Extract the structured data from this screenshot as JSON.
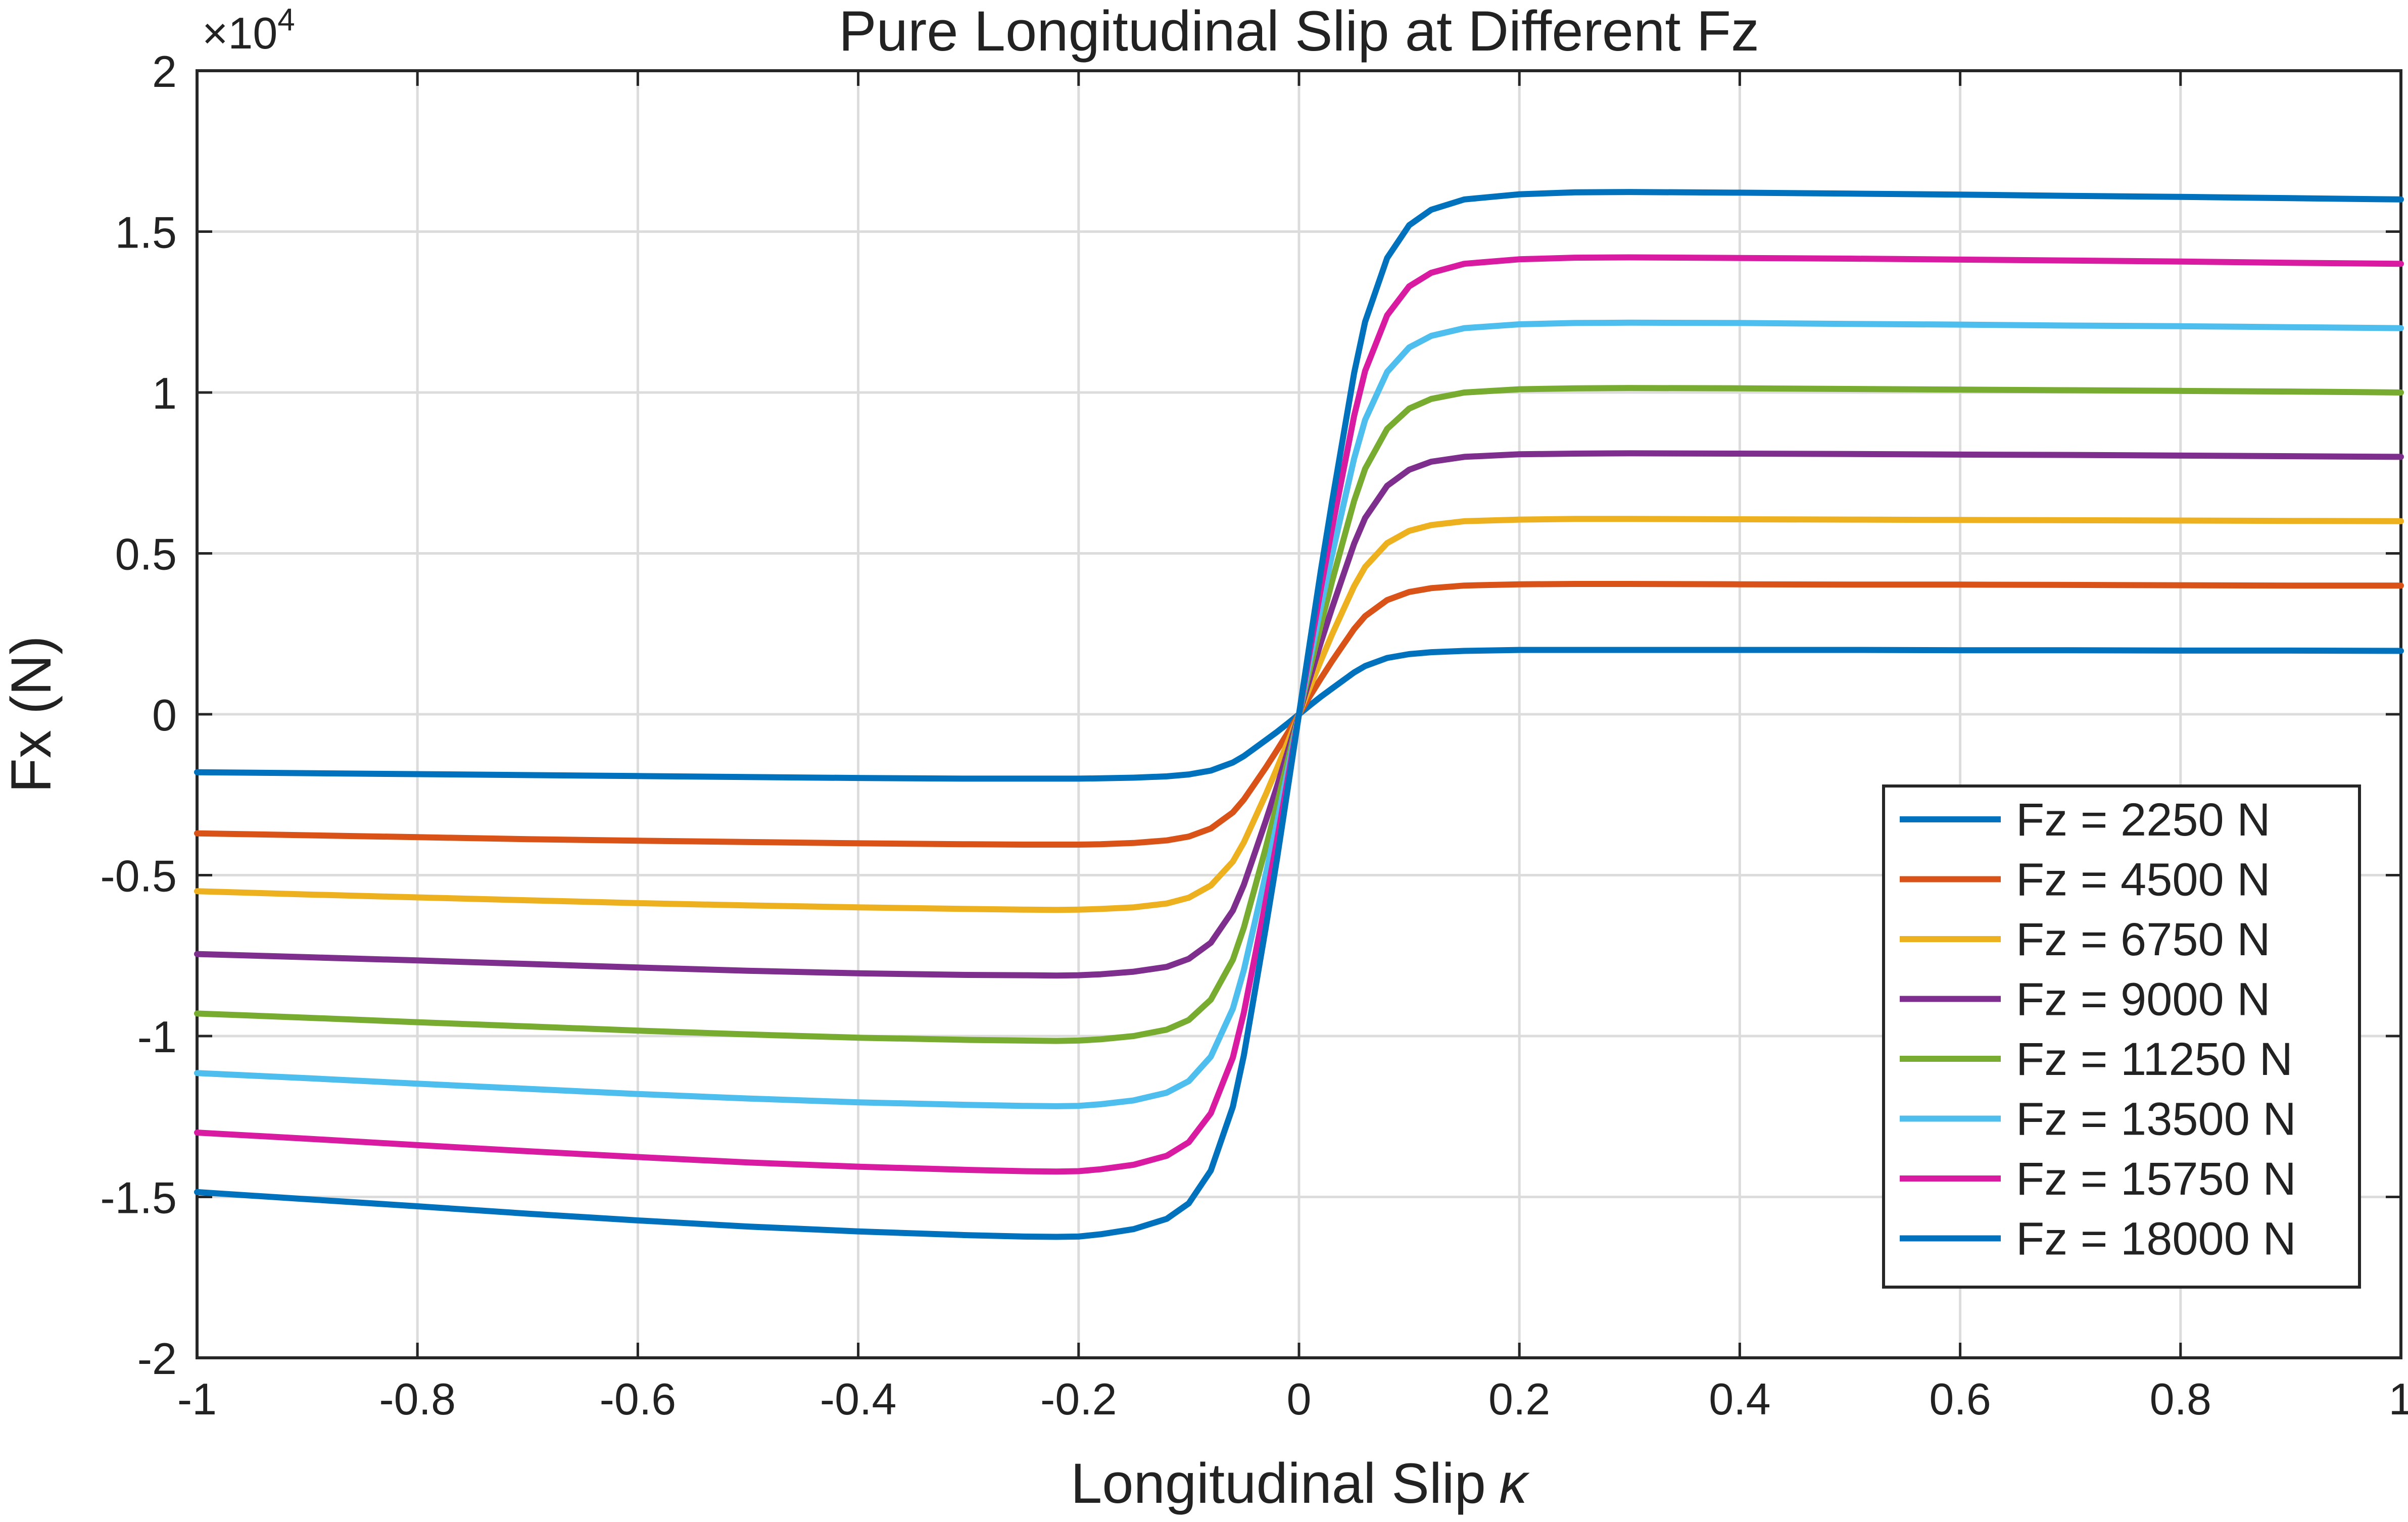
{
  "chart_data": {
    "type": "line",
    "title": "Pure Longitudinal Slip at Different Fz",
    "xlabel": "Longitudinal  Slip",
    "xlabel_symbol": "κ",
    "ylabel": "Fx (N)",
    "y_exponent_label": "×10",
    "y_exponent_power": "4",
    "xlim": [
      -1,
      1
    ],
    "ylim": [
      -2,
      2
    ],
    "x_ticks": [
      -1,
      -0.8,
      -0.6,
      -0.4,
      -0.2,
      0,
      0.2,
      0.4,
      0.6,
      0.8,
      1
    ],
    "x_tick_labels": [
      "-1",
      "-0.8",
      "-0.6",
      "-0.4",
      "-0.2",
      "0",
      "0.2",
      "0.4",
      "0.6",
      "0.8",
      "1"
    ],
    "y_ticks": [
      -2,
      -1.5,
      -1,
      -0.5,
      0,
      0.5,
      1,
      1.5,
      2
    ],
    "y_tick_labels": [
      "-2",
      "-1.5",
      "-1",
      "-0.5",
      "0",
      "0.5",
      "1",
      "1.5",
      "2"
    ],
    "grid": true,
    "legend_position": "bottom-right",
    "x": [
      -1,
      -0.9,
      -0.8,
      -0.7,
      -0.6,
      -0.5,
      -0.4,
      -0.3,
      -0.25,
      -0.22,
      -0.2,
      -0.18,
      -0.15,
      -0.12,
      -0.1,
      -0.08,
      -0.06,
      -0.05,
      -0.04,
      -0.03,
      -0.02,
      -0.01,
      0,
      0.01,
      0.02,
      0.03,
      0.04,
      0.05,
      0.06,
      0.08,
      0.1,
      0.12,
      0.15,
      0.2,
      0.25,
      0.3,
      0.4,
      0.5,
      0.6,
      0.7,
      0.8,
      0.9,
      1
    ],
    "series": [
      {
        "name": "Fz = 2250 N",
        "color": "#0072BD",
        "values": [
          -0.18,
          -0.183,
          -0.186,
          -0.189,
          -0.192,
          -0.195,
          -0.198,
          -0.2,
          -0.2,
          -0.2,
          -0.2,
          -0.199,
          -0.197,
          -0.193,
          -0.187,
          -0.175,
          -0.15,
          -0.13,
          -0.105,
          -0.08,
          -0.055,
          -0.028,
          0,
          0.028,
          0.055,
          0.08,
          0.105,
          0.13,
          0.15,
          0.175,
          0.187,
          0.193,
          0.197,
          0.2,
          0.2,
          0.2,
          0.2,
          0.2,
          0.199,
          0.199,
          0.198,
          0.198,
          0.197
        ]
      },
      {
        "name": "Fz = 4500 N",
        "color": "#D95319",
        "values": [
          -0.37,
          -0.376,
          -0.382,
          -0.388,
          -0.393,
          -0.397,
          -0.401,
          -0.404,
          -0.405,
          -0.405,
          -0.405,
          -0.404,
          -0.4,
          -0.392,
          -0.38,
          -0.355,
          -0.305,
          -0.265,
          -0.215,
          -0.165,
          -0.112,
          -0.057,
          0,
          0.057,
          0.112,
          0.165,
          0.215,
          0.265,
          0.305,
          0.355,
          0.38,
          0.392,
          0.4,
          0.404,
          0.405,
          0.405,
          0.404,
          0.403,
          0.403,
          0.402,
          0.401,
          0.4,
          0.4
        ]
      },
      {
        "name": "Fz = 6750 N",
        "color": "#EDB120",
        "values": [
          -0.55,
          -0.56,
          -0.569,
          -0.578,
          -0.587,
          -0.594,
          -0.6,
          -0.605,
          -0.607,
          -0.608,
          -0.607,
          -0.605,
          -0.6,
          -0.588,
          -0.57,
          -0.532,
          -0.458,
          -0.398,
          -0.323,
          -0.248,
          -0.168,
          -0.085,
          0,
          0.085,
          0.168,
          0.248,
          0.323,
          0.398,
          0.458,
          0.532,
          0.57,
          0.588,
          0.6,
          0.605,
          0.607,
          0.607,
          0.606,
          0.605,
          0.604,
          0.603,
          0.602,
          0.601,
          0.6
        ]
      },
      {
        "name": "Fz = 9000 N",
        "color": "#7E2F8E",
        "values": [
          -0.745,
          -0.755,
          -0.765,
          -0.776,
          -0.787,
          -0.797,
          -0.805,
          -0.81,
          -0.811,
          -0.812,
          -0.811,
          -0.808,
          -0.8,
          -0.785,
          -0.76,
          -0.71,
          -0.61,
          -0.53,
          -0.43,
          -0.33,
          -0.225,
          -0.113,
          0,
          0.113,
          0.225,
          0.33,
          0.43,
          0.53,
          0.61,
          0.71,
          0.76,
          0.785,
          0.8,
          0.808,
          0.81,
          0.811,
          0.81,
          0.809,
          0.807,
          0.806,
          0.804,
          0.802,
          0.8
        ]
      },
      {
        "name": "Fz = 11250 N",
        "color": "#77AC30",
        "values": [
          -0.93,
          -0.943,
          -0.957,
          -0.97,
          -0.983,
          -0.995,
          -1.005,
          -1.012,
          -1.014,
          -1.015,
          -1.014,
          -1.01,
          -1.0,
          -0.98,
          -0.95,
          -0.887,
          -0.763,
          -0.663,
          -0.538,
          -0.413,
          -0.28,
          -0.142,
          0,
          0.142,
          0.28,
          0.413,
          0.538,
          0.663,
          0.763,
          0.887,
          0.95,
          0.98,
          1.0,
          1.01,
          1.013,
          1.014,
          1.013,
          1.011,
          1.009,
          1.007,
          1.005,
          1.003,
          1.0
        ]
      },
      {
        "name": "Fz = 13500 N",
        "color": "#4DBEEE",
        "values": [
          -1.115,
          -1.131,
          -1.148,
          -1.164,
          -1.18,
          -1.194,
          -1.206,
          -1.214,
          -1.217,
          -1.218,
          -1.217,
          -1.212,
          -1.2,
          -1.176,
          -1.14,
          -1.064,
          -0.915,
          -0.795,
          -0.645,
          -0.495,
          -0.337,
          -0.17,
          0,
          0.17,
          0.337,
          0.495,
          0.645,
          0.795,
          0.915,
          1.064,
          1.14,
          1.176,
          1.2,
          1.212,
          1.216,
          1.217,
          1.216,
          1.213,
          1.211,
          1.208,
          1.206,
          1.203,
          1.2
        ]
      },
      {
        "name": "Fz = 15750 N",
        "color": "#D91BA1",
        "values": [
          -1.3,
          -1.319,
          -1.339,
          -1.358,
          -1.376,
          -1.393,
          -1.406,
          -1.416,
          -1.42,
          -1.421,
          -1.42,
          -1.414,
          -1.4,
          -1.372,
          -1.33,
          -1.24,
          -1.067,
          -0.927,
          -0.752,
          -0.578,
          -0.393,
          -0.198,
          0,
          0.198,
          0.393,
          0.578,
          0.752,
          0.927,
          1.067,
          1.24,
          1.33,
          1.372,
          1.4,
          1.414,
          1.419,
          1.42,
          1.418,
          1.416,
          1.413,
          1.41,
          1.407,
          1.403,
          1.4
        ]
      },
      {
        "name": "Fz = 18000 N",
        "color": "#0072BD",
        "values": [
          -1.485,
          -1.507,
          -1.529,
          -1.552,
          -1.573,
          -1.592,
          -1.607,
          -1.619,
          -1.623,
          -1.624,
          -1.623,
          -1.616,
          -1.6,
          -1.568,
          -1.52,
          -1.418,
          -1.22,
          -1.06,
          -0.86,
          -0.66,
          -0.45,
          -0.226,
          0,
          0.226,
          0.45,
          0.66,
          0.86,
          1.06,
          1.22,
          1.418,
          1.52,
          1.568,
          1.6,
          1.616,
          1.622,
          1.623,
          1.621,
          1.618,
          1.615,
          1.611,
          1.608,
          1.604,
          1.6
        ]
      }
    ]
  }
}
